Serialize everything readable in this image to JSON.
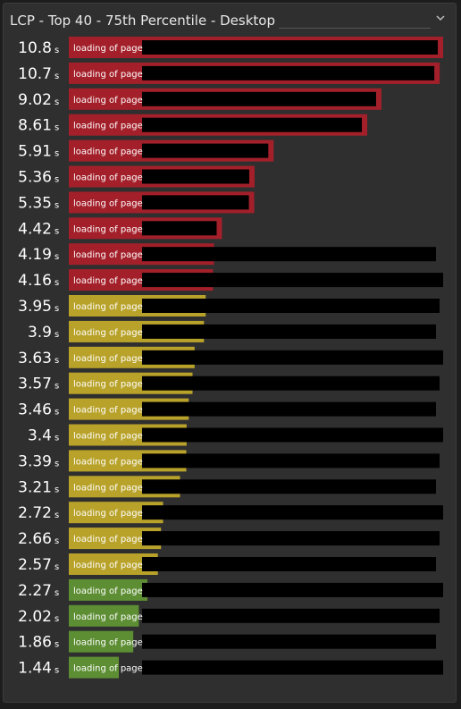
{
  "panel": {
    "title": "LCP - Top 40 - 75th Percentile - Desktop",
    "collapse_icon": "chevron-down-icon"
  },
  "chart_data": {
    "type": "bar",
    "orientation": "horizontal",
    "title": "LCP - Top 40 - 75th Percentile - Desktop",
    "unit": "s",
    "xlim": [
      0,
      10.8
    ],
    "colors": {
      "poor": "#a3202a",
      "needs_improvement": "#b8a22a",
      "good": "#5d8e34",
      "redaction": "#000000"
    },
    "thresholds": {
      "good_max": 2.5,
      "needs_improvement_max": 4.0
    },
    "rows": [
      {
        "label": "loading of page",
        "value": 10.8,
        "display": "10.8"
      },
      {
        "label": "loading of page",
        "value": 10.7,
        "display": "10.7"
      },
      {
        "label": "loading of page",
        "value": 9.02,
        "display": "9.02"
      },
      {
        "label": "loading of page",
        "value": 8.61,
        "display": "8.61"
      },
      {
        "label": "loading of page",
        "value": 5.91,
        "display": "5.91"
      },
      {
        "label": "loading of page",
        "value": 5.36,
        "display": "5.36"
      },
      {
        "label": "loading of page",
        "value": 5.35,
        "display": "5.35"
      },
      {
        "label": "loading of page",
        "value": 4.42,
        "display": "4.42"
      },
      {
        "label": "loading of page",
        "value": 4.19,
        "display": "4.19"
      },
      {
        "label": "loading of page",
        "value": 4.16,
        "display": "4.16"
      },
      {
        "label": "loading of page",
        "value": 3.95,
        "display": "3.95"
      },
      {
        "label": "loading of page",
        "value": 3.9,
        "display": "3.9"
      },
      {
        "label": "loading of page",
        "value": 3.63,
        "display": "3.63"
      },
      {
        "label": "loading of page",
        "value": 3.57,
        "display": "3.57"
      },
      {
        "label": "loading of page",
        "value": 3.46,
        "display": "3.46"
      },
      {
        "label": "loading of page",
        "value": 3.4,
        "display": "3.4"
      },
      {
        "label": "loading of page",
        "value": 3.39,
        "display": "3.39"
      },
      {
        "label": "loading of page",
        "value": 3.21,
        "display": "3.21"
      },
      {
        "label": "loading of page",
        "value": 2.72,
        "display": "2.72"
      },
      {
        "label": "loading of page",
        "value": 2.66,
        "display": "2.66"
      },
      {
        "label": "loading of page",
        "value": 2.57,
        "display": "2.57"
      },
      {
        "label": "loading of page",
        "value": 2.27,
        "display": "2.27"
      },
      {
        "label": "loading of page",
        "value": 2.02,
        "display": "2.02"
      },
      {
        "label": "loading of page",
        "value": 1.86,
        "display": "1.86"
      },
      {
        "label": "loading of page",
        "value": 1.44,
        "display": "1.44"
      }
    ]
  }
}
